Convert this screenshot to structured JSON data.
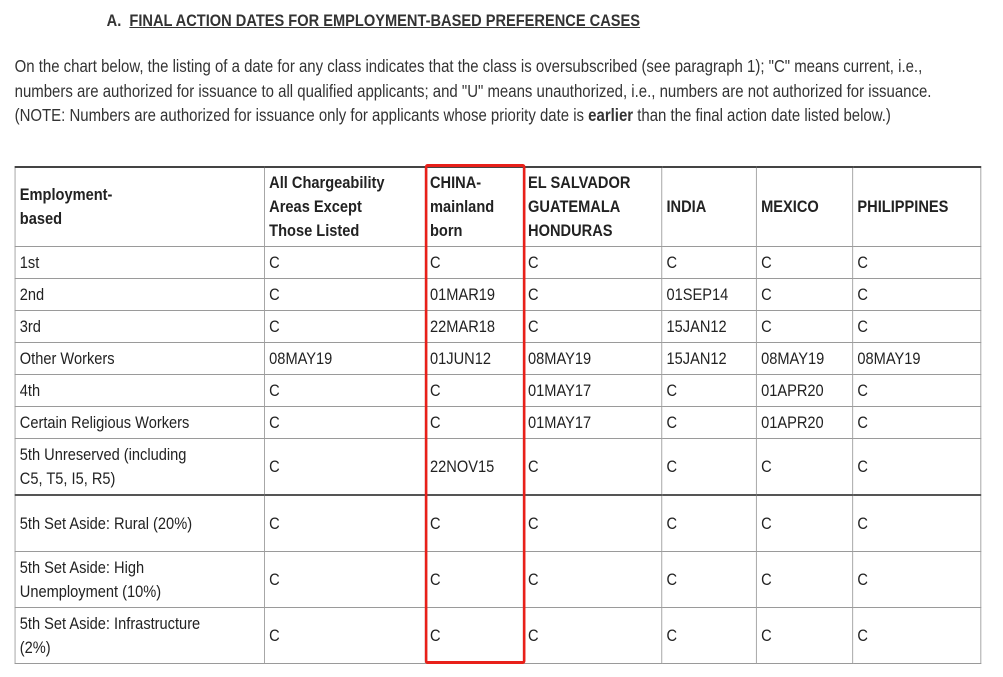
{
  "section": {
    "letter": "A.",
    "title": "FINAL ACTION DATES FOR EMPLOYMENT-BASED PREFERENCE CASES"
  },
  "intro": {
    "before_bold": "On the chart below, the listing of a date for any class indicates that the class is oversubscribed (see paragraph 1); \"C\" means current, i.e., numbers are authorized for issuance to all qualified applicants; and \"U\" means unauthorized, i.e., numbers are not authorized for issuance. (NOTE: Numbers are authorized for issuance only for applicants whose priority date is ",
    "bold": "earlier",
    "after_bold": " than the final action date listed below.)"
  },
  "highlight": {
    "column": "CHINA-mainland born",
    "color": "#e8201a"
  },
  "table": {
    "headers": [
      "Employment-based",
      "All Chargeability Areas Except Those Listed",
      "CHINA-mainland born",
      "EL SALVADOR GUATEMALA HONDURAS",
      "INDIA",
      "MEXICO",
      "PHILIPPINES"
    ],
    "rows": [
      [
        "1st",
        "C",
        "C",
        "C",
        "C",
        "C",
        "C"
      ],
      [
        "2nd",
        "C",
        "01MAR19",
        "C",
        "01SEP14",
        "C",
        "C"
      ],
      [
        "3rd",
        "C",
        "22MAR18",
        "C",
        "15JAN12",
        "C",
        "C"
      ],
      [
        "Other Workers",
        "08MAY19",
        "01JUN12",
        "08MAY19",
        "15JAN12",
        "08MAY19",
        "08MAY19"
      ],
      [
        "4th",
        "C",
        "C",
        "01MAY17",
        "C",
        "01APR20",
        "C"
      ],
      [
        "Certain Religious Workers",
        "C",
        "C",
        "01MAY17",
        "C",
        "01APR20",
        "C"
      ],
      [
        "5th Unreserved (including C5, T5, I5, R5)",
        "C",
        "22NOV15",
        "C",
        "C",
        "C",
        "C"
      ],
      [
        "5th Set Aside: Rural (20%)",
        "C",
        "C",
        "C",
        "C",
        "C",
        "C"
      ],
      [
        "5th Set Aside: High Unemployment (10%)",
        "C",
        "C",
        "C",
        "C",
        "C",
        "C"
      ],
      [
        "5th Set Aside: Infrastructure (2%)",
        "C",
        "C",
        "C",
        "C",
        "C",
        "C"
      ]
    ]
  }
}
